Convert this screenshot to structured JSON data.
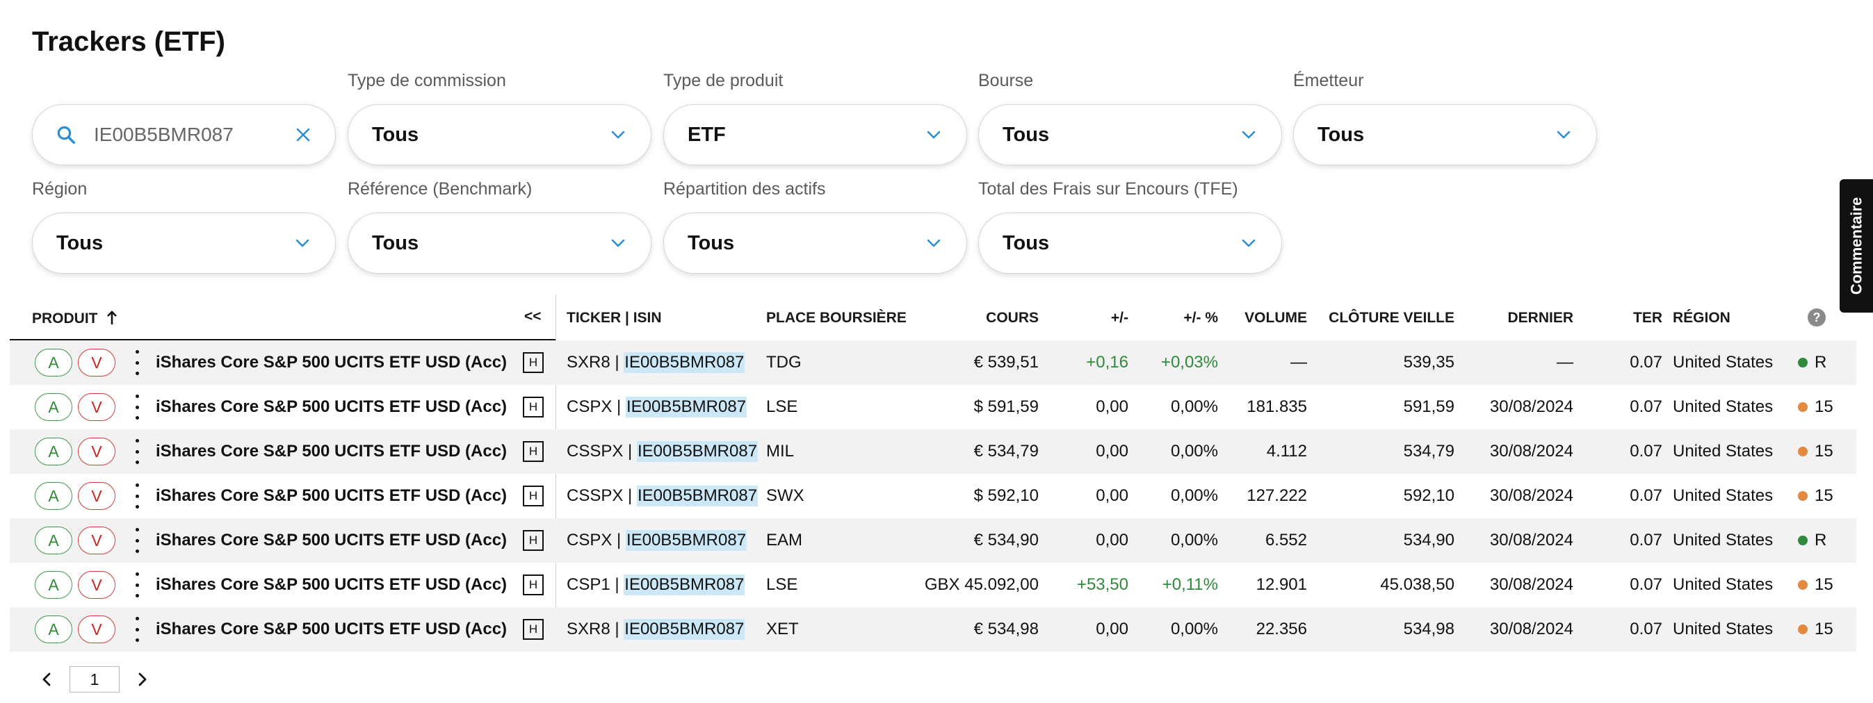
{
  "page": {
    "title": "Trackers (ETF)"
  },
  "search": {
    "value": "IE00B5BMR087"
  },
  "filters": [
    {
      "label": "Type de commission",
      "value": "Tous"
    },
    {
      "label": "Type de produit",
      "value": "ETF"
    },
    {
      "label": "Bourse",
      "value": "Tous"
    },
    {
      "label": "Émetteur",
      "value": "Tous"
    },
    {
      "label": "Région",
      "value": "Tous"
    },
    {
      "label": "Référence (Benchmark)",
      "value": "Tous"
    },
    {
      "label": "Répartition des actifs",
      "value": "Tous"
    },
    {
      "label": "Total des Frais sur Encours (TFE)",
      "value": "Tous"
    }
  ],
  "feedback": {
    "label": "Commentaire"
  },
  "table": {
    "columns": {
      "product": "PRODUIT",
      "collapse": "<<",
      "ticker": "TICKER | ISIN",
      "exchange": "PLACE BOURSIÈRE",
      "price": "COURS",
      "change": "+/-",
      "change_pct": "+/- %",
      "volume": "VOLUME",
      "prev_close": "CLÔTURE VEILLE",
      "last": "DERNIER",
      "ter": "TER",
      "region": "RÉGION"
    },
    "buy_label": "A",
    "sell_label": "V",
    "badge_label": "H",
    "rows": [
      {
        "product": "iShares Core S&P 500 UCITS ETF USD (Acc)",
        "ticker": "SXR8",
        "sep": " | ",
        "isin": "IE00B5BMR087",
        "exchange": "TDG",
        "price": "€ 539,51",
        "change": "+0,16",
        "change_pct": "+0,03%",
        "volume": "—",
        "prev_close": "539,35",
        "last": "—",
        "ter": "0.07",
        "region": "United States",
        "status": "R",
        "status_color": "#2e8b3e"
      },
      {
        "product": "iShares Core S&P 500 UCITS ETF USD (Acc)",
        "ticker": "CSPX",
        "sep": " | ",
        "isin": "IE00B5BMR087",
        "exchange": "LSE",
        "price": "$ 591,59",
        "change": "0,00",
        "change_pct": "0,00%",
        "volume": "181.835",
        "prev_close": "591,59",
        "last": "30/08/2024",
        "ter": "0.07",
        "region": "United States",
        "status": "15",
        "status_color": "#e58a3c"
      },
      {
        "product": "iShares Core S&P 500 UCITS ETF USD (Acc)",
        "ticker": "CSSPX",
        "sep": " | ",
        "isin": "IE00B5BMR087",
        "exchange": "MIL",
        "price": "€ 534,79",
        "change": "0,00",
        "change_pct": "0,00%",
        "volume": "4.112",
        "prev_close": "534,79",
        "last": "30/08/2024",
        "ter": "0.07",
        "region": "United States",
        "status": "15",
        "status_color": "#e58a3c"
      },
      {
        "product": "iShares Core S&P 500 UCITS ETF USD (Acc)",
        "ticker": "CSSPX",
        "sep": " | ",
        "isin": "IE00B5BMR087",
        "exchange": "SWX",
        "price": "$ 592,10",
        "change": "0,00",
        "change_pct": "0,00%",
        "volume": "127.222",
        "prev_close": "592,10",
        "last": "30/08/2024",
        "ter": "0.07",
        "region": "United States",
        "status": "15",
        "status_color": "#e58a3c"
      },
      {
        "product": "iShares Core S&P 500 UCITS ETF USD (Acc)",
        "ticker": "CSPX",
        "sep": " | ",
        "isin": "IE00B5BMR087",
        "exchange": "EAM",
        "price": "€ 534,90",
        "change": "0,00",
        "change_pct": "0,00%",
        "volume": "6.552",
        "prev_close": "534,90",
        "last": "30/08/2024",
        "ter": "0.07",
        "region": "United States",
        "status": "R",
        "status_color": "#2e8b3e"
      },
      {
        "product": "iShares Core S&P 500 UCITS ETF USD (Acc)",
        "ticker": "CSP1",
        "sep": " | ",
        "isin": "IE00B5BMR087",
        "exchange": "LSE",
        "price": "GBX 45.092,00",
        "change": "+53,50",
        "change_pct": "+0,11%",
        "volume": "12.901",
        "prev_close": "45.038,50",
        "last": "30/08/2024",
        "ter": "0.07",
        "region": "United States",
        "status": "15",
        "status_color": "#e58a3c"
      },
      {
        "product": "iShares Core S&P 500 UCITS ETF USD (Acc)",
        "ticker": "SXR8",
        "sep": " | ",
        "isin": "IE00B5BMR087",
        "exchange": "XET",
        "price": "€ 534,98",
        "change": "0,00",
        "change_pct": "0,00%",
        "volume": "22.356",
        "prev_close": "534,98",
        "last": "30/08/2024",
        "ter": "0.07",
        "region": "United States",
        "status": "15",
        "status_color": "#e58a3c"
      }
    ]
  },
  "pagination": {
    "current_page": "1"
  },
  "colors": {
    "accent": "#2a8fd6",
    "positive": "#2f8a3a",
    "buy": "#3a9a46",
    "sell": "#d43a3a",
    "isin_highlight": "#cce8f6"
  }
}
